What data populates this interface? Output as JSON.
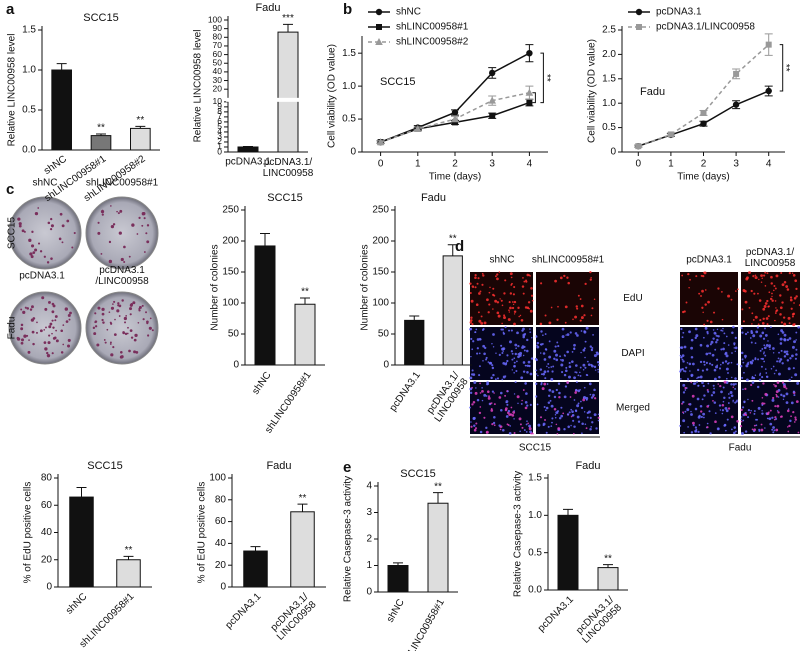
{
  "figure": {
    "panel_letters": [
      "a",
      "b",
      "c",
      "d",
      "e"
    ],
    "colony": {
      "rows": [
        "SCC15",
        "Fadu"
      ],
      "cols": [
        [
          "shNC",
          "shLINC00958#1"
        ],
        [
          "pcDNA3.1",
          "pcDNA3.1/LINC00958"
        ]
      ]
    },
    "edu": {
      "columns": [
        "shNC",
        "shLINC00958#1",
        "pcDNA3.1",
        "pcDNA3.1/LINC00958"
      ],
      "rows": [
        "EdU",
        "DAPI",
        "Merged"
      ],
      "groups": [
        "SCC15",
        "Fadu"
      ]
    }
  },
  "chart_data": [
    {
      "type": "bar",
      "title": "SCC15",
      "y_label": "Relative LINC00958 level",
      "categories": [
        "shNC",
        "shLINC00958#1",
        "shLINC00958#2"
      ],
      "values": [
        1.0,
        0.18,
        0.27
      ],
      "errors": [
        0.08,
        0.02,
        0.025
      ],
      "significance": [
        null,
        "**",
        "**"
      ],
      "colors": [
        "#111111",
        "#777777",
        "#dddddd"
      ],
      "ylim": [
        0,
        1.5
      ],
      "yticks": [
        {
          "value": 0,
          "label": "0.0"
        },
        0.5,
        {
          "value": 1,
          "label": "1.0"
        },
        1.5
      ]
    },
    {
      "type": "bar",
      "title": "Fadu",
      "y_label": "Relative LINC00958 level",
      "categories": [
        "pcDNA3.1",
        "pcDNA3.1/LINC00958"
      ],
      "values": [
        1,
        86
      ],
      "errors": [
        0.1,
        9
      ],
      "significance": [
        null,
        "***"
      ],
      "colors": [
        "#111111",
        "#dddddd"
      ],
      "ybreak": 10,
      "ylim": [
        0,
        100
      ],
      "yticks": [
        0,
        1,
        2,
        3,
        4,
        5,
        6,
        7,
        8,
        9,
        10,
        20,
        30,
        40,
        50,
        60,
        70,
        80,
        90,
        100
      ]
    },
    {
      "type": "line",
      "title": "SCC15",
      "y_label": "Cell viability (OD value)",
      "x_label": "Time (days)",
      "x": [
        0,
        1,
        2,
        3,
        4
      ],
      "xlim": [
        -0.5,
        4.5
      ],
      "xticks": [
        0,
        1,
        2,
        3,
        4
      ],
      "ylim": [
        0,
        1.7
      ],
      "yticks": [
        0,
        0.5,
        {
          "value": 1,
          "label": "1.0"
        },
        1.5
      ],
      "annotations": [
        "**"
      ],
      "series": [
        {
          "name": "shNC",
          "color": "#111111",
          "marker": "circle",
          "dashed": false,
          "values": [
            0.15,
            0.37,
            0.6,
            1.2,
            1.5
          ],
          "errors": [
            0.02,
            0.03,
            0.04,
            0.08,
            0.13
          ]
        },
        {
          "name": "shLINC00958#1",
          "color": "#111111",
          "marker": "square",
          "dashed": false,
          "values": [
            0.15,
            0.35,
            0.45,
            0.55,
            0.75
          ],
          "errors": [
            0.02,
            0.02,
            0.03,
            0.04,
            0.05
          ]
        },
        {
          "name": "shLINC00958#2",
          "color": "#999999",
          "marker": "triangle",
          "dashed": true,
          "values": [
            0.15,
            0.35,
            0.5,
            0.78,
            0.9
          ],
          "errors": [
            0.02,
            0.03,
            0.04,
            0.07,
            0.1
          ]
        }
      ]
    },
    {
      "type": "line",
      "title": "Fadu",
      "y_label": "Cell viability (OD value)",
      "x_label": "Time (days)",
      "x": [
        0,
        1,
        2,
        3,
        4
      ],
      "xlim": [
        -0.5,
        4.5
      ],
      "xticks": [
        0,
        1,
        2,
        3,
        4
      ],
      "ylim": [
        0,
        2.5
      ],
      "yticks": [
        0,
        0.5,
        {
          "value": 1,
          "label": "1.0"
        },
        1.5,
        {
          "value": 2,
          "label": "2.0"
        },
        2.5
      ],
      "annotations": [
        "**"
      ],
      "series": [
        {
          "name": "pcDNA3.1",
          "color": "#111111",
          "marker": "circle",
          "dashed": false,
          "values": [
            0.12,
            0.35,
            0.58,
            0.97,
            1.25
          ],
          "errors": [
            0.02,
            0.03,
            0.05,
            0.08,
            0.1
          ]
        },
        {
          "name": "pcDNA3.1/LINC00958",
          "color": "#999999",
          "marker": "square",
          "dashed": true,
          "values": [
            0.12,
            0.36,
            0.8,
            1.6,
            2.2
          ],
          "errors": [
            0.02,
            0.03,
            0.05,
            0.1,
            0.22
          ]
        }
      ]
    },
    {
      "type": "bar",
      "title": "SCC15",
      "y_label": "Number of colonies",
      "categories": [
        "shNC",
        "shLINC00958#1"
      ],
      "values": [
        192,
        98
      ],
      "errors": [
        20,
        10
      ],
      "significance": [
        null,
        "**"
      ],
      "colors": [
        "#111111",
        "#dddddd"
      ],
      "ylim": [
        0,
        250
      ],
      "yticks": [
        0,
        50,
        100,
        150,
        200,
        250
      ]
    },
    {
      "type": "bar",
      "title": "Fadu",
      "y_label": "Number of colonies",
      "categories": [
        "pcDNA3.1",
        "pcDNA3.1/LINC00958"
      ],
      "values": [
        72,
        176
      ],
      "errors": [
        7,
        18
      ],
      "significance": [
        null,
        "**"
      ],
      "colors": [
        "#111111",
        "#dddddd"
      ],
      "ylim": [
        0,
        250
      ],
      "yticks": [
        0,
        50,
        100,
        150,
        200,
        250
      ]
    },
    {
      "type": "bar",
      "title": "SCC15",
      "y_label": "% of EdU positive cells",
      "categories": [
        "shNC",
        "shLINC00958#1"
      ],
      "values": [
        66,
        20
      ],
      "errors": [
        7,
        2.5
      ],
      "significance": [
        null,
        "**"
      ],
      "colors": [
        "#111111",
        "#dddddd"
      ],
      "ylim": [
        0,
        80
      ],
      "yticks": [
        0,
        20,
        40,
        60,
        80
      ]
    },
    {
      "type": "bar",
      "title": "Fadu",
      "y_label": "% of EdU positive cells",
      "categories": [
        "pcDNA3.1",
        "pcDNA3.1/LINC00958"
      ],
      "values": [
        33,
        69
      ],
      "errors": [
        4,
        7
      ],
      "significance": [
        null,
        "**"
      ],
      "colors": [
        "#111111",
        "#dddddd"
      ],
      "ylim": [
        0,
        100
      ],
      "yticks": [
        0,
        20,
        40,
        60,
        80,
        100
      ]
    },
    {
      "type": "bar",
      "title": "SCC15",
      "y_label": "Relative Casepase-3 activity",
      "categories": [
        "shNC",
        "shLINC00958#1"
      ],
      "values": [
        1.0,
        3.35
      ],
      "errors": [
        0.1,
        0.4
      ],
      "significance": [
        null,
        "**"
      ],
      "colors": [
        "#111111",
        "#dddddd"
      ],
      "ylim": [
        0,
        4
      ],
      "yticks": [
        0,
        1,
        2,
        3,
        4
      ]
    },
    {
      "type": "bar",
      "title": "Fadu",
      "y_label": "Relative Casepase-3 activity",
      "categories": [
        "pcDNA3.1",
        "pcDNA3.1/LINC00958"
      ],
      "values": [
        1.0,
        0.3
      ],
      "errors": [
        0.08,
        0.04
      ],
      "significance": [
        null,
        "**"
      ],
      "colors": [
        "#111111",
        "#dddddd"
      ],
      "ylim": [
        0,
        1.5
      ],
      "yticks": [
        {
          "value": 0,
          "label": "0.0"
        },
        0.5,
        {
          "value": 1,
          "label": "1.0"
        },
        1.5
      ]
    }
  ]
}
